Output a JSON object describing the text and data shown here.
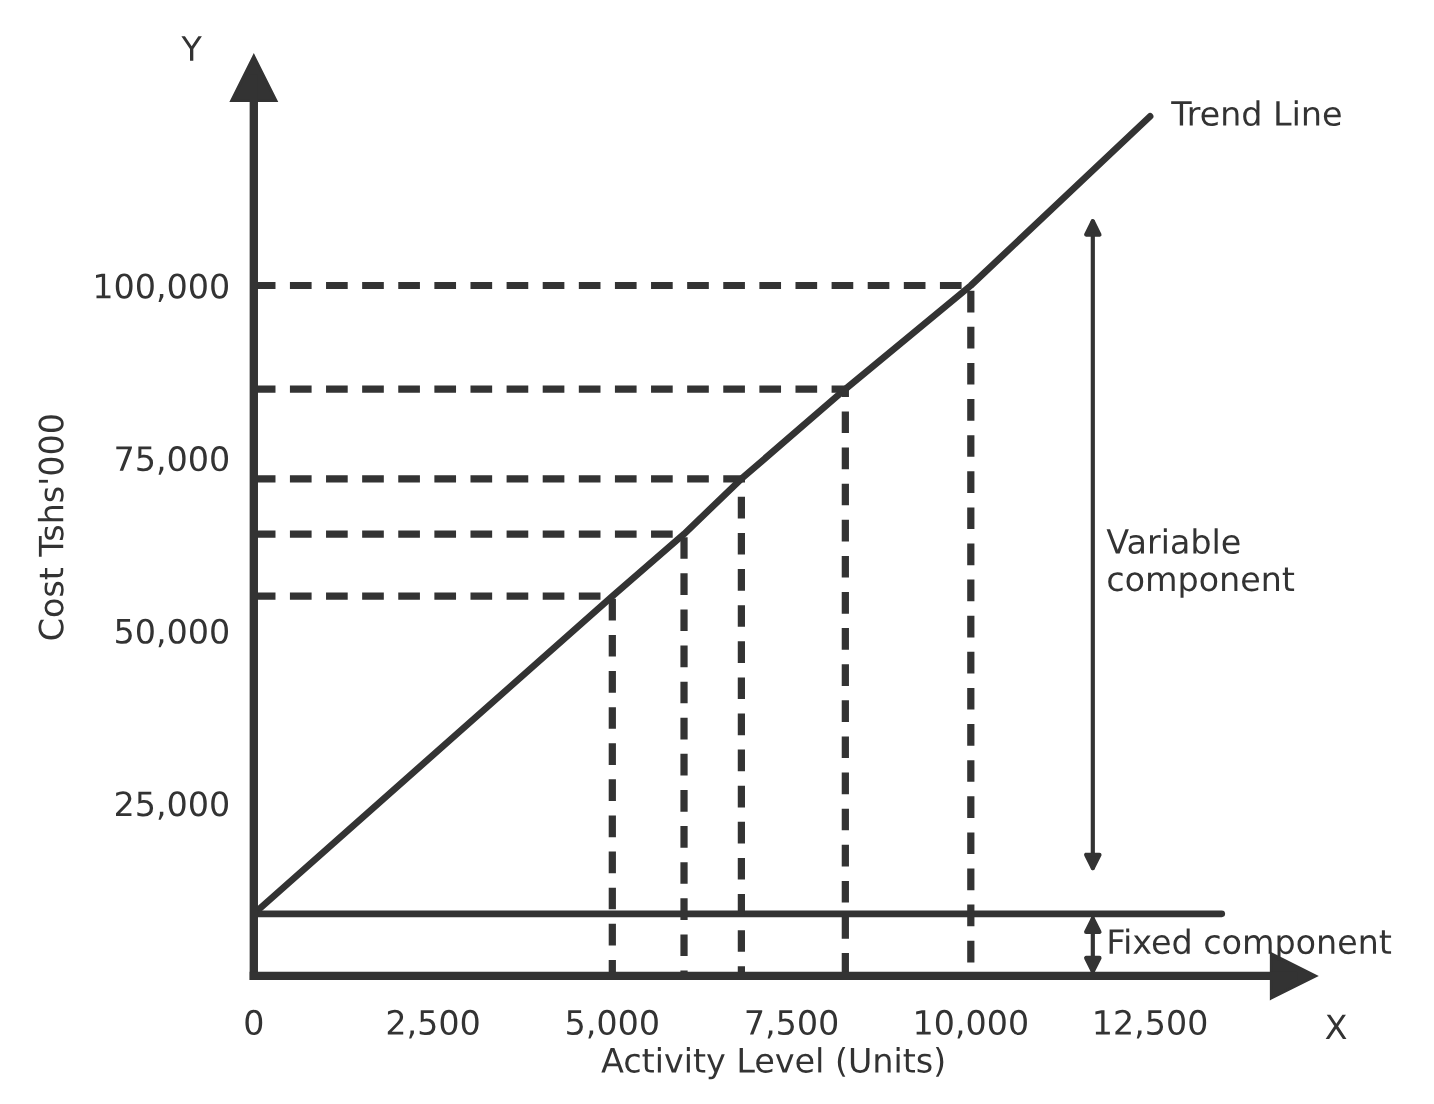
{
  "chart_data": {
    "type": "line",
    "xlabel": "Activity Level (Units)",
    "ylabel": "Cost Tshs'000",
    "series": [
      {
        "name": "Trend Line",
        "color": "#333333",
        "line_style": "solid",
        "x": [
          0,
          5000,
          6000,
          6800,
          8250,
          10000,
          12500
        ],
        "values": [
          9000,
          55000,
          64000,
          72000,
          85000,
          100000,
          124500
        ]
      },
      {
        "color": "#333333",
        "line_style": "solid",
        "x": [
          0,
          13500
        ],
        "values": [
          9000,
          9000
        ]
      },
      {
        "color": "#333333",
        "line_style": "dashed",
        "x": [
          0,
          5000,
          5000
        ],
        "values": [
          55000,
          55000,
          0
        ]
      },
      {
        "color": "#333333",
        "line_style": "dashed",
        "x": [
          0,
          6000,
          6000
        ],
        "values": [
          64000,
          64000,
          0
        ]
      },
      {
        "color": "#333333",
        "line_style": "dashed",
        "x": [
          0,
          6800,
          6800
        ],
        "values": [
          72000,
          72000,
          0
        ]
      },
      {
        "color": "#333333",
        "line_style": "dashed",
        "x": [
          0,
          8250,
          8250
        ],
        "values": [
          85000,
          85000,
          0
        ]
      },
      {
        "color": "#333333",
        "line_style": "dashed",
        "x": [
          0,
          10000,
          10000
        ],
        "values": [
          100000,
          100000,
          0
        ]
      }
    ],
    "annotations": [
      "Y",
      "X",
      "Variable\ncomponent",
      "Fixed component"
    ],
    "xlim": [
      0,
      14500
    ],
    "ylim": [
      0,
      130000
    ],
    "xticks": [
      0,
      {
        "value": 2500,
        "label": "2,500"
      },
      {
        "value": 5000,
        "label": "5,000"
      },
      {
        "value": 7500,
        "label": "7,500"
      },
      {
        "value": 10000,
        "label": "10,000"
      },
      {
        "value": 12500,
        "label": "12,500"
      }
    ],
    "yticks": [
      {
        "value": 25000,
        "label": "25,000"
      },
      {
        "value": 50000,
        "label": "50,000"
      },
      {
        "value": 75000,
        "label": "75,000"
      },
      {
        "value": 100000,
        "label": "100,000"
      }
    ],
    "grid": false,
    "legend": false,
    "marker": "none"
  }
}
